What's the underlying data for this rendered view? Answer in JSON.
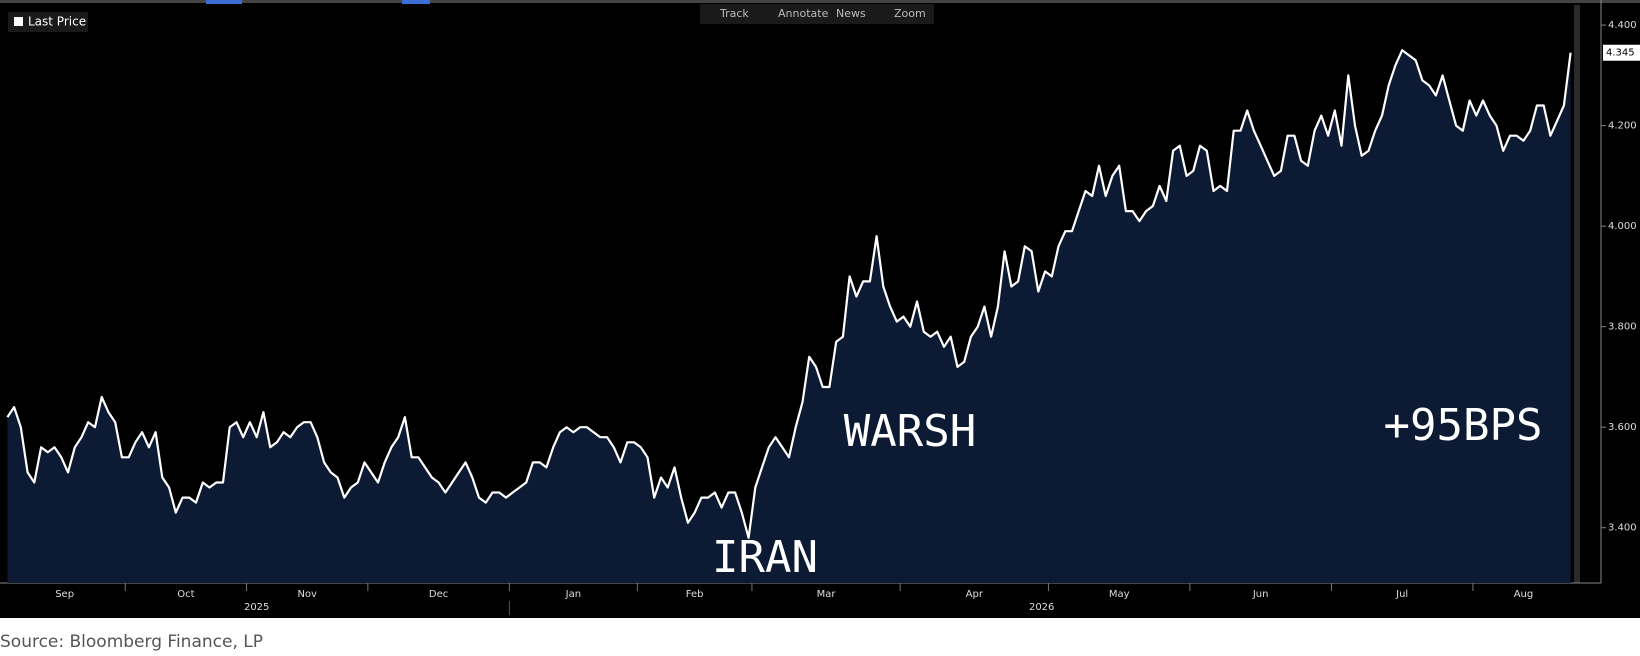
{
  "chart_data": {
    "type": "area-line",
    "toolbar": [
      "Track",
      "Annotate",
      "News",
      "Zoom"
    ],
    "series": [
      {
        "name": "Last Price",
        "color": "#ffffff",
        "fill": "#0c1a33",
        "values": [
          3.62,
          3.64,
          3.6,
          3.51,
          3.49,
          3.56,
          3.55,
          3.56,
          3.54,
          3.51,
          3.56,
          3.58,
          3.61,
          3.6,
          3.66,
          3.63,
          3.61,
          3.54,
          3.54,
          3.57,
          3.59,
          3.56,
          3.59,
          3.5,
          3.48,
          3.43,
          3.46,
          3.46,
          3.45,
          3.49,
          3.48,
          3.49,
          3.49,
          3.6,
          3.61,
          3.58,
          3.61,
          3.58,
          3.63,
          3.56,
          3.57,
          3.59,
          3.58,
          3.6,
          3.61,
          3.61,
          3.58,
          3.53,
          3.51,
          3.5,
          3.46,
          3.48,
          3.49,
          3.53,
          3.51,
          3.49,
          3.53,
          3.56,
          3.58,
          3.62,
          3.54,
          3.54,
          3.52,
          3.5,
          3.49,
          3.47,
          3.49,
          3.51,
          3.53,
          3.5,
          3.46,
          3.45,
          3.47,
          3.47,
          3.46,
          3.47,
          3.48,
          3.49,
          3.53,
          3.53,
          3.52,
          3.56,
          3.59,
          3.6,
          3.59,
          3.6,
          3.6,
          3.59,
          3.58,
          3.58,
          3.56,
          3.53,
          3.57,
          3.57,
          3.56,
          3.54,
          3.46,
          3.5,
          3.48,
          3.52,
          3.46,
          3.41,
          3.43,
          3.46,
          3.46,
          3.47,
          3.44,
          3.47,
          3.47,
          3.43,
          3.38,
          3.48,
          3.52,
          3.56,
          3.58,
          3.56,
          3.54,
          3.6,
          3.65,
          3.74,
          3.72,
          3.68,
          3.68,
          3.77,
          3.78,
          3.9,
          3.86,
          3.89,
          3.89,
          3.98,
          3.88,
          3.84,
          3.81,
          3.82,
          3.8,
          3.85,
          3.79,
          3.78,
          3.79,
          3.76,
          3.78,
          3.72,
          3.73,
          3.78,
          3.8,
          3.84,
          3.78,
          3.84,
          3.95,
          3.88,
          3.89,
          3.96,
          3.95,
          3.87,
          3.91,
          3.9,
          3.96,
          3.99,
          3.99,
          4.03,
          4.07,
          4.06,
          4.12,
          4.06,
          4.1,
          4.12,
          4.03,
          4.03,
          4.01,
          4.03,
          4.04,
          4.08,
          4.05,
          4.15,
          4.16,
          4.1,
          4.11,
          4.16,
          4.15,
          4.07,
          4.08,
          4.07,
          4.19,
          4.19,
          4.23,
          4.19,
          4.16,
          4.13,
          4.1,
          4.11,
          4.18,
          4.18,
          4.13,
          4.12,
          4.19,
          4.22,
          4.18,
          4.23,
          4.16,
          4.3,
          4.2,
          4.14,
          4.15,
          4.19,
          4.22,
          4.28,
          4.32,
          4.35,
          4.34,
          4.33,
          4.29,
          4.28,
          4.26,
          4.3,
          4.25,
          4.2,
          4.19,
          4.25,
          4.22,
          4.25,
          4.22,
          4.2,
          4.15,
          4.18,
          4.18,
          4.17,
          4.19,
          4.24,
          4.24,
          4.18,
          4.21,
          4.24,
          4.345
        ]
      }
    ],
    "categories": [
      "Sep",
      null,
      null,
      null,
      null,
      null,
      null,
      null,
      null,
      null,
      null,
      null,
      null,
      null,
      null,
      null,
      null,
      null,
      "Oct",
      null,
      null,
      null,
      null,
      null,
      null,
      null,
      null,
      null,
      null,
      null,
      null,
      null,
      null,
      null,
      null,
      null,
      "Nov",
      null,
      null,
      null,
      null,
      null,
      null,
      null,
      null,
      null,
      null,
      null,
      null,
      null,
      null,
      null,
      null,
      null,
      "Dec",
      null,
      null,
      null,
      null,
      null,
      null,
      null,
      null,
      null,
      null,
      null,
      null,
      null,
      null,
      null,
      null,
      null,
      null,
      null,
      null,
      "Jan",
      null,
      null,
      null,
      null,
      null,
      null,
      null,
      null,
      null,
      null,
      null,
      null,
      null,
      null,
      null,
      null,
      null,
      null,
      "Feb",
      null,
      null,
      null,
      null,
      null,
      null,
      null,
      null,
      null,
      null,
      null,
      null,
      null,
      null,
      null,
      null,
      "Mar",
      null,
      null,
      null,
      null,
      null,
      null,
      null,
      null,
      null,
      null,
      null,
      null,
      null,
      null,
      null,
      null,
      null,
      null,
      null,
      null,
      null,
      "Apr",
      null,
      null,
      null,
      null,
      null,
      null,
      null,
      null,
      null,
      null,
      null,
      null,
      null,
      null,
      null,
      null,
      null,
      null,
      null,
      null,
      null,
      "May",
      null,
      null,
      null,
      null,
      null,
      null,
      null,
      null,
      null,
      null,
      null,
      null,
      null,
      null,
      null,
      null,
      null,
      null,
      null,
      null,
      "Jun",
      null,
      null,
      null,
      null,
      null,
      null,
      null,
      null,
      null,
      null,
      null,
      null,
      null,
      null,
      null,
      null,
      null,
      null,
      null,
      null,
      "Jul",
      null,
      null,
      null,
      null,
      null,
      null,
      null,
      null,
      null,
      null,
      null,
      null,
      null,
      null,
      null,
      null,
      null,
      null,
      null,
      null,
      "Aug",
      null,
      null,
      null,
      null,
      null,
      null,
      null,
      null,
      null,
      null,
      null,
      null,
      null,
      null
    ],
    "years": [
      "2025",
      "2026"
    ],
    "ylim": [
      3.29,
      4.44
    ],
    "yticks": [
      {
        "value": 3.4,
        "label": "3.400"
      },
      {
        "value": 3.6,
        "label": "3.600"
      },
      {
        "value": 3.8,
        "label": "3.800"
      },
      {
        "value": 4.0,
        "label": "4.000"
      },
      {
        "value": 4.2,
        "label": "4.200"
      },
      {
        "value": 4.4,
        "label": "4.400"
      }
    ],
    "annotations": [
      "IRAN",
      "WARSH",
      "+95BPS"
    ],
    "source": "Source: Bloomberg Finance, LP"
  }
}
